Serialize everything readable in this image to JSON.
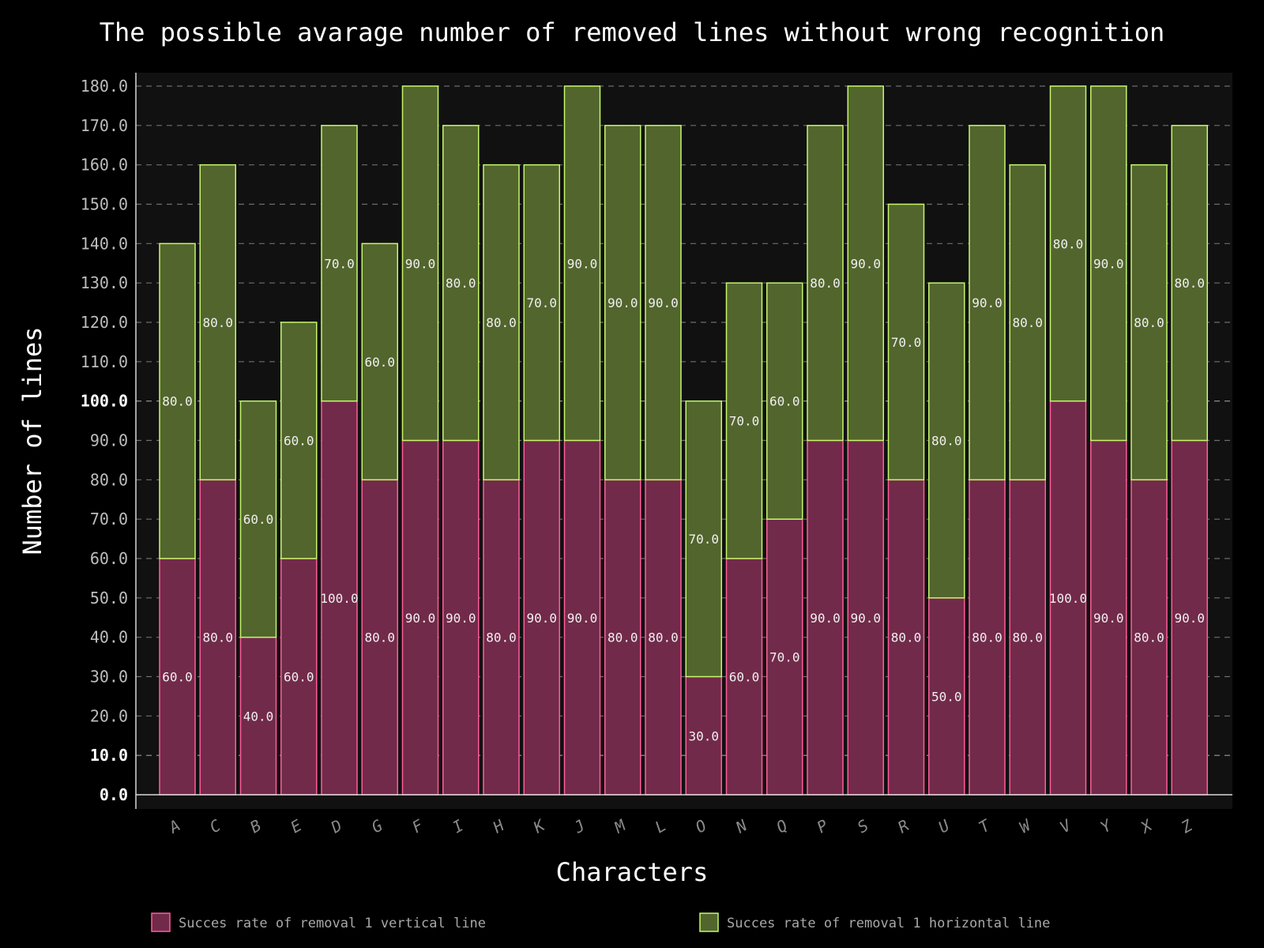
{
  "chart_data": {
    "type": "bar",
    "stacked": true,
    "title": "The possible avarage number of removed lines without wrong recognition",
    "xlabel": "Characters",
    "ylabel": "Number of lines",
    "ylim": [
      0,
      180
    ],
    "yticks": [
      "0.0",
      "10.0",
      "20.0",
      "30.0",
      "40.0",
      "50.0",
      "60.0",
      "70.0",
      "80.0",
      "90.0",
      "100.0",
      "110.0",
      "120.0",
      "130.0",
      "140.0",
      "150.0",
      "160.0",
      "170.0",
      "180.0"
    ],
    "grid": true,
    "legend_position": "bottom",
    "categories": [
      "A",
      "C",
      "B",
      "E",
      "D",
      "G",
      "F",
      "I",
      "H",
      "K",
      "J",
      "M",
      "L",
      "O",
      "N",
      "Q",
      "P",
      "S",
      "R",
      "U",
      "T",
      "W",
      "V",
      "Y",
      "X",
      "Z"
    ],
    "series": [
      {
        "name": "Succes rate of removal 1 vertical line",
        "color": "#722a4a",
        "edge_color": "#ff5c9a",
        "values": [
          60,
          80,
          40,
          60,
          100,
          80,
          90,
          90,
          80,
          90,
          90,
          80,
          80,
          30,
          60,
          70,
          90,
          90,
          80,
          50,
          80,
          80,
          100,
          90,
          80,
          90
        ]
      },
      {
        "name": "Succes rate of removal 1 horizontal line",
        "color": "#52652d",
        "edge_color": "#c5f76b",
        "values": [
          80,
          80,
          60,
          60,
          70,
          60,
          90,
          80,
          80,
          70,
          90,
          90,
          90,
          70,
          70,
          60,
          80,
          90,
          70,
          80,
          90,
          80,
          80,
          90,
          80,
          80
        ]
      }
    ]
  }
}
